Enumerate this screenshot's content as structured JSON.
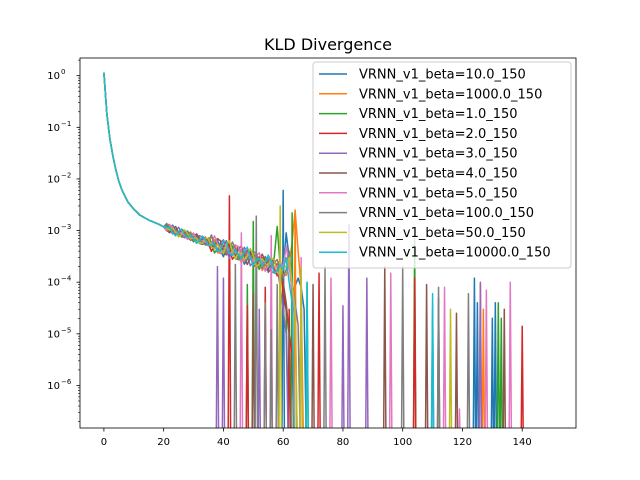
{
  "chart_data": {
    "type": "line",
    "title": "KLD Divergence",
    "xlabel": "",
    "ylabel": "",
    "xlim": [
      -8,
      158
    ],
    "ylim": [
      1.5e-07,
      2.2
    ],
    "yscale": "log",
    "grid": false,
    "legend_position": "top-right",
    "x_ticks": [
      0,
      20,
      40,
      60,
      80,
      100,
      120,
      140
    ],
    "x_tick_labels": [
      "0",
      "20",
      "40",
      "60",
      "80",
      "100",
      "120",
      "140"
    ],
    "y_ticks": [
      1e-06,
      1e-05,
      0.0001,
      0.001,
      0.01,
      0.1,
      1
    ],
    "y_tick_labels": [
      {
        "base": "10",
        "exp": "−6"
      },
      {
        "base": "10",
        "exp": "−5"
      },
      {
        "base": "10",
        "exp": "−4"
      },
      {
        "base": "10",
        "exp": "−3"
      },
      {
        "base": "10",
        "exp": "−2"
      },
      {
        "base": "10",
        "exp": "−1"
      },
      {
        "base": "10",
        "exp": "0"
      }
    ],
    "common_curve": {
      "x": [
        0,
        1,
        2,
        3,
        4,
        5,
        6,
        8,
        10,
        12,
        15,
        18,
        20,
        25,
        30,
        35,
        40,
        45,
        50,
        55,
        60
      ],
      "y": [
        1.15,
        0.18,
        0.06,
        0.028,
        0.015,
        0.009,
        0.0062,
        0.0036,
        0.0026,
        0.002,
        0.0016,
        0.00135,
        0.00118,
        0.00092,
        0.00072,
        0.00058,
        0.00046,
        0.00037,
        0.00029,
        0.00023,
        0.00018
      ]
    },
    "series": [
      {
        "name": "VRNN_v1_beta=10.0_150",
        "color": "#1f77b4",
        "end": 59,
        "tail_x": [
          60,
          61,
          62,
          63,
          65,
          66,
          67
        ],
        "tail_y": [
          0.00012,
          0.0009,
          0.0003,
          6e-05,
          0.00012,
          8e-05,
          3e-05
        ],
        "spikes": [
          [
            60,
            0.006
          ],
          [
            124,
            0.00012
          ],
          [
            125,
            4e-05
          ],
          [
            130,
            2e-05
          ],
          [
            131,
            4e-05
          ]
        ]
      },
      {
        "name": "VRNN_v1_beta=1000.0_150",
        "color": "#ff7f0e",
        "end": 62,
        "tail_x": [
          63,
          64,
          65,
          66
        ],
        "tail_y": [
          0.0006,
          0.0025,
          0.0004,
          8e-05
        ],
        "spikes": [
          [
            64,
            0.0025
          ],
          [
            126,
            9e-05
          ],
          [
            127,
            3e-05
          ]
        ]
      },
      {
        "name": "VRNN_v1_beta=1.0_150",
        "color": "#2ca02c",
        "end": 56,
        "tail_x": [
          57,
          58,
          59,
          60,
          61
        ],
        "tail_y": [
          0.0003,
          0.0012,
          0.0002,
          8e-05,
          3e-05
        ],
        "spikes": [
          [
            48,
            9e-05
          ],
          [
            50,
            0.0015
          ],
          [
            63,
            0.0022
          ],
          [
            68,
            0.0001
          ],
          [
            104,
            0.0007
          ],
          [
            132,
            4e-05
          ],
          [
            133,
            2e-05
          ]
        ]
      },
      {
        "name": "VRNN_v1_beta=2.0_150",
        "color": "#d62728",
        "end": 58,
        "tail_x": [
          59,
          60,
          61,
          62,
          63
        ],
        "tail_y": [
          0.0003,
          6e-05,
          3e-05,
          1e-05,
          4e-06
        ],
        "spikes": [
          [
            42,
            0.0047
          ],
          [
            48,
            3.5e-05
          ],
          [
            54,
            8e-05
          ],
          [
            62,
            3e-05
          ],
          [
            72,
            0.00015
          ],
          [
            104,
            0.00012
          ],
          [
            140,
            1.4e-05
          ]
        ]
      },
      {
        "name": "VRNN_v1_beta=3.0_150",
        "color": "#9467bd",
        "end": 57,
        "tail_x": [
          58,
          59,
          60,
          61
        ],
        "tail_y": [
          0.0002,
          8e-05,
          3e-05,
          1e-05
        ],
        "spikes": [
          [
            38,
            0.0002
          ],
          [
            40,
            0.00012
          ],
          [
            52,
            3e-05
          ],
          [
            80,
            3.5e-05
          ],
          [
            82,
            0.0013
          ],
          [
            88,
            0.00012
          ],
          [
            110,
            3e-05
          ],
          [
            126,
            0.0001
          ]
        ]
      },
      {
        "name": "VRNN_v1_beta=4.0_150",
        "color": "#8c564b",
        "end": 59,
        "tail_x": [
          60,
          61,
          62
        ],
        "tail_y": [
          0.0001,
          4e-05,
          1e-05
        ],
        "spikes": [
          [
            50,
            6e-05
          ],
          [
            56,
            4e-05
          ],
          [
            70,
            9e-05
          ],
          [
            94,
            0.0002
          ],
          [
            108,
            9e-05
          ],
          [
            112,
            5e-05
          ],
          [
            118,
            2.5e-05
          ],
          [
            134,
            3e-05
          ]
        ]
      },
      {
        "name": "VRNN_v1_beta=5.0_150",
        "color": "#e377c2",
        "end": 60,
        "tail_x": [
          61,
          62,
          63,
          64
        ],
        "tail_y": [
          0.0005,
          0.0002,
          7e-05,
          2e-05
        ],
        "spikes": [
          [
            46,
            0.0009
          ],
          [
            56,
            0.0008
          ],
          [
            66,
            0.0003
          ],
          [
            76,
            0.00012
          ],
          [
            96,
            0.00015
          ],
          [
            114,
            8e-05
          ],
          [
            119,
            3.5e-07
          ],
          [
            128,
            7e-05
          ],
          [
            136,
            0.0001
          ]
        ]
      },
      {
        "name": "VRNN_v1_beta=100.0_150",
        "color": "#7f7f7f",
        "end": 61,
        "tail_x": [
          62,
          63,
          64,
          65
        ],
        "tail_y": [
          0.0004,
          0.0001,
          4e-05,
          1.5e-05
        ],
        "spikes": [
          [
            44,
            0.00022
          ],
          [
            51,
            0.0019
          ],
          [
            54,
            4e-05
          ],
          [
            56,
            1.2e-05
          ],
          [
            58,
            9e-05
          ],
          [
            74,
            0.0002
          ],
          [
            100,
            0.0002
          ],
          [
            112,
            8e-05
          ],
          [
            122,
            6e-05
          ]
        ]
      },
      {
        "name": "VRNN_v1_beta=50.0_150",
        "color": "#bcbd22",
        "end": 61,
        "tail_x": [
          62,
          63,
          64
        ],
        "tail_y": [
          0.0003,
          9e-05,
          3e-05
        ],
        "spikes": [
          [
            59,
            0.003
          ],
          [
            66,
            0.0002
          ],
          [
            116,
            3e-05
          ]
        ]
      },
      {
        "name": "VRNN_v1_beta=10000.0_150",
        "color": "#17becf",
        "end": 60,
        "tail_x": [
          61,
          62,
          63
        ],
        "tail_y": [
          0.0003,
          0.0001,
          4e-05
        ],
        "spikes": [
          [
            68,
            0.0001
          ],
          [
            110,
            6e-05
          ]
        ]
      }
    ]
  }
}
